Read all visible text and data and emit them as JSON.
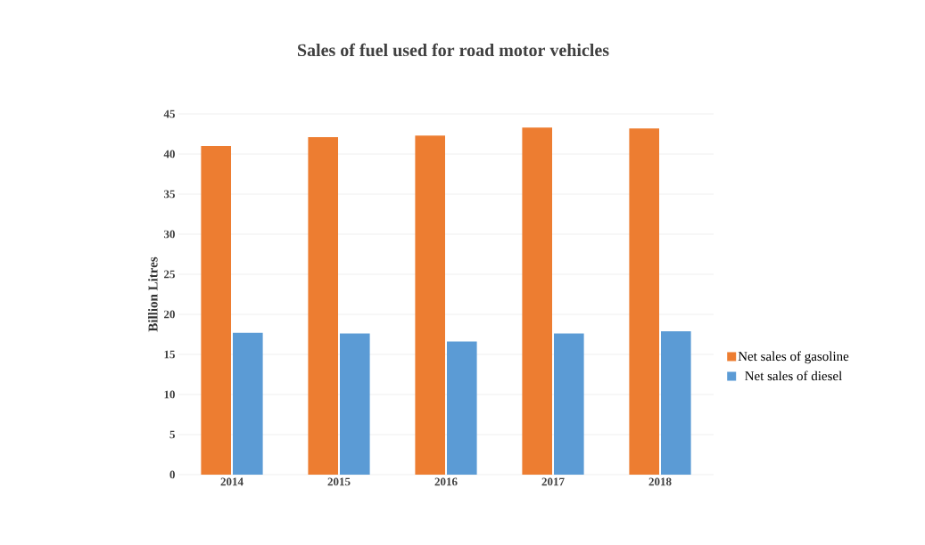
{
  "chart_data": {
    "type": "bar",
    "title": "Sales of fuel used for road motor vehicles",
    "ylabel": "Billion Litres",
    "categories": [
      "2014",
      "2015",
      "2016",
      "2017",
      "2018"
    ],
    "series": [
      {
        "name": "Net sales of gasoline",
        "color": "#ed7d31",
        "values": [
          41.0,
          42.1,
          42.3,
          43.3,
          43.2
        ]
      },
      {
        "name": "Net sales of diesel",
        "color": "#5b9bd5",
        "values": [
          17.7,
          17.6,
          16.6,
          17.6,
          17.9
        ]
      }
    ],
    "ylim": [
      0,
      45
    ],
    "yticks": [
      0,
      5,
      10,
      15,
      20,
      25,
      30,
      35,
      40,
      45
    ],
    "grid": "y",
    "legend": "right"
  }
}
